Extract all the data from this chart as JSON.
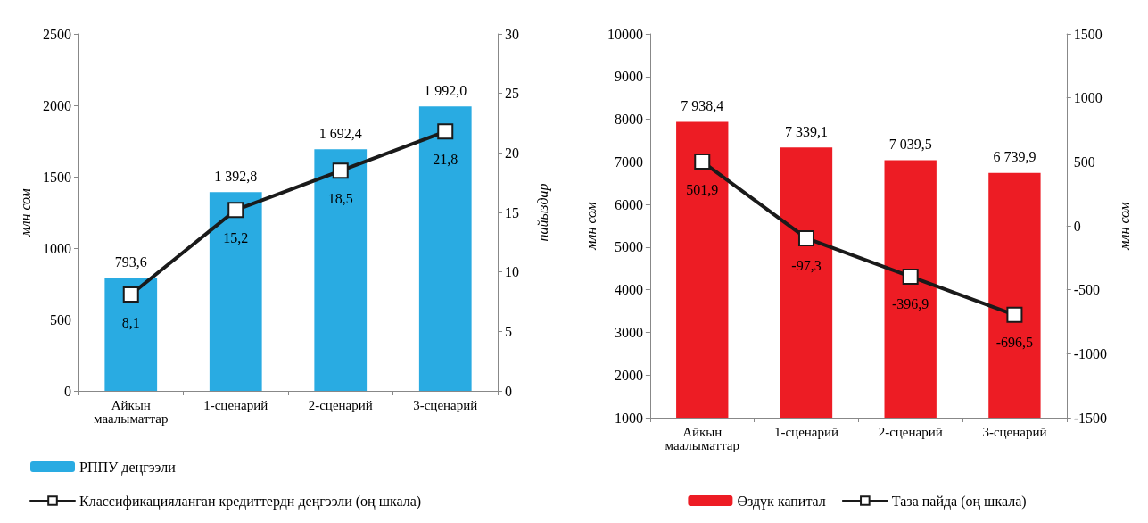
{
  "chart_data": [
    {
      "type": "bar",
      "categories": [
        "Айкын маалыматтар",
        "1-сценарий",
        "2-сценарий",
        "3-сценарий"
      ],
      "ylabel": "млн сом",
      "y2label": "пайыздар",
      "ylim": [
        0,
        2500
      ],
      "yticks": [
        0,
        500,
        1000,
        1500,
        2000,
        2500
      ],
      "y2lim": [
        0,
        30
      ],
      "y2ticks": [
        0,
        5,
        10,
        15,
        20,
        25,
        30
      ],
      "grid": false,
      "legend": "bottom left",
      "marker": "square",
      "line_style": "solid",
      "series": [
        {
          "name": "РППУ деңгээли",
          "color": "#29abe2",
          "values": [
            793.6,
            1392.8,
            1692.4,
            1992.0
          ],
          "value_labels": [
            "793,6",
            "1 392,8",
            "1 692,4",
            "1 992,0"
          ]
        },
        {
          "name": "Классификацияланган кредиттердн деңгээли (оң шкала)",
          "type": "line",
          "axis": "y2",
          "color": "#1a1a1a",
          "values": [
            8.1,
            15.2,
            18.5,
            21.8
          ],
          "value_labels": [
            "8,1",
            "15,2",
            "18,5",
            "21,8"
          ]
        }
      ]
    },
    {
      "type": "bar",
      "categories": [
        "Айкын маалыматтар",
        "1-сценарий",
        "2-сценарий",
        "3-сценарий"
      ],
      "ylabel": "млн сом",
      "y2label": "млн сом",
      "ylim": [
        1000,
        10000
      ],
      "yticks": [
        1000,
        2000,
        3000,
        4000,
        5000,
        6000,
        7000,
        8000,
        9000,
        10000
      ],
      "y2lim": [
        -1500,
        1500
      ],
      "y2ticks": [
        -1500,
        -1000,
        -500,
        0,
        500,
        1000,
        1500
      ],
      "grid": false,
      "legend": "bottom",
      "marker": "square",
      "line_style": "solid",
      "series": [
        {
          "name": "Өздүк капитал",
          "color": "#ed1c24",
          "values": [
            7938.4,
            7339.1,
            7039.5,
            6739.9
          ],
          "value_labels": [
            "7 938,4",
            "7 339,1",
            "7 039,5",
            "6 739,9"
          ]
        },
        {
          "name": "Таза пайда (оң шкала)",
          "type": "line",
          "axis": "y2",
          "color": "#1a1a1a",
          "values": [
            501.9,
            -97.3,
            -396.9,
            -696.5
          ],
          "value_labels": [
            "501,9",
            "-97,3",
            "-396,9",
            "-696,5"
          ]
        }
      ]
    }
  ]
}
